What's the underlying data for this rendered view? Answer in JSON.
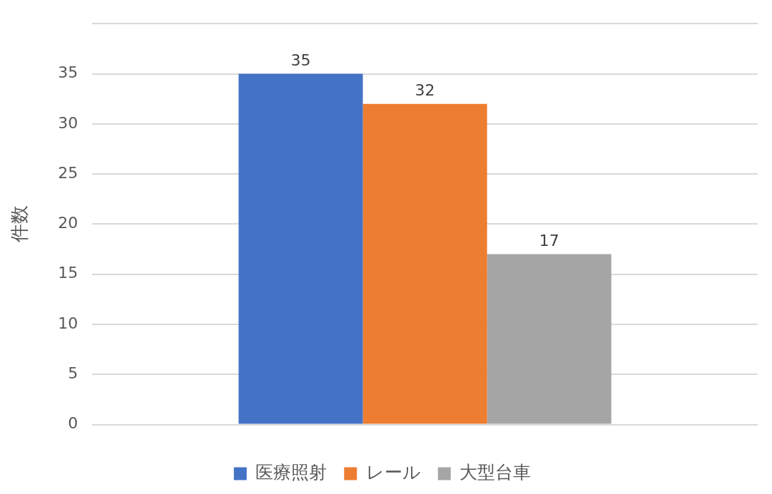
{
  "chart_data": {
    "type": "bar",
    "ylabel": "件数",
    "categories": [
      null
    ],
    "series": [
      {
        "name": "医療照射",
        "color": "#4472c4",
        "values": [
          35
        ]
      },
      {
        "name": "レール",
        "color": "#ed7d31",
        "values": [
          32
        ]
      },
      {
        "name": "大型台車",
        "color": "#a5a5a5",
        "values": [
          17
        ]
      }
    ],
    "ylim": [
      0,
      40
    ],
    "yticks": [
      0,
      5,
      10,
      15,
      20,
      25,
      30,
      35,
      {
        "value": 40,
        "label": null
      }
    ],
    "grid": "y",
    "legend": "bottom",
    "data_labels": true
  }
}
